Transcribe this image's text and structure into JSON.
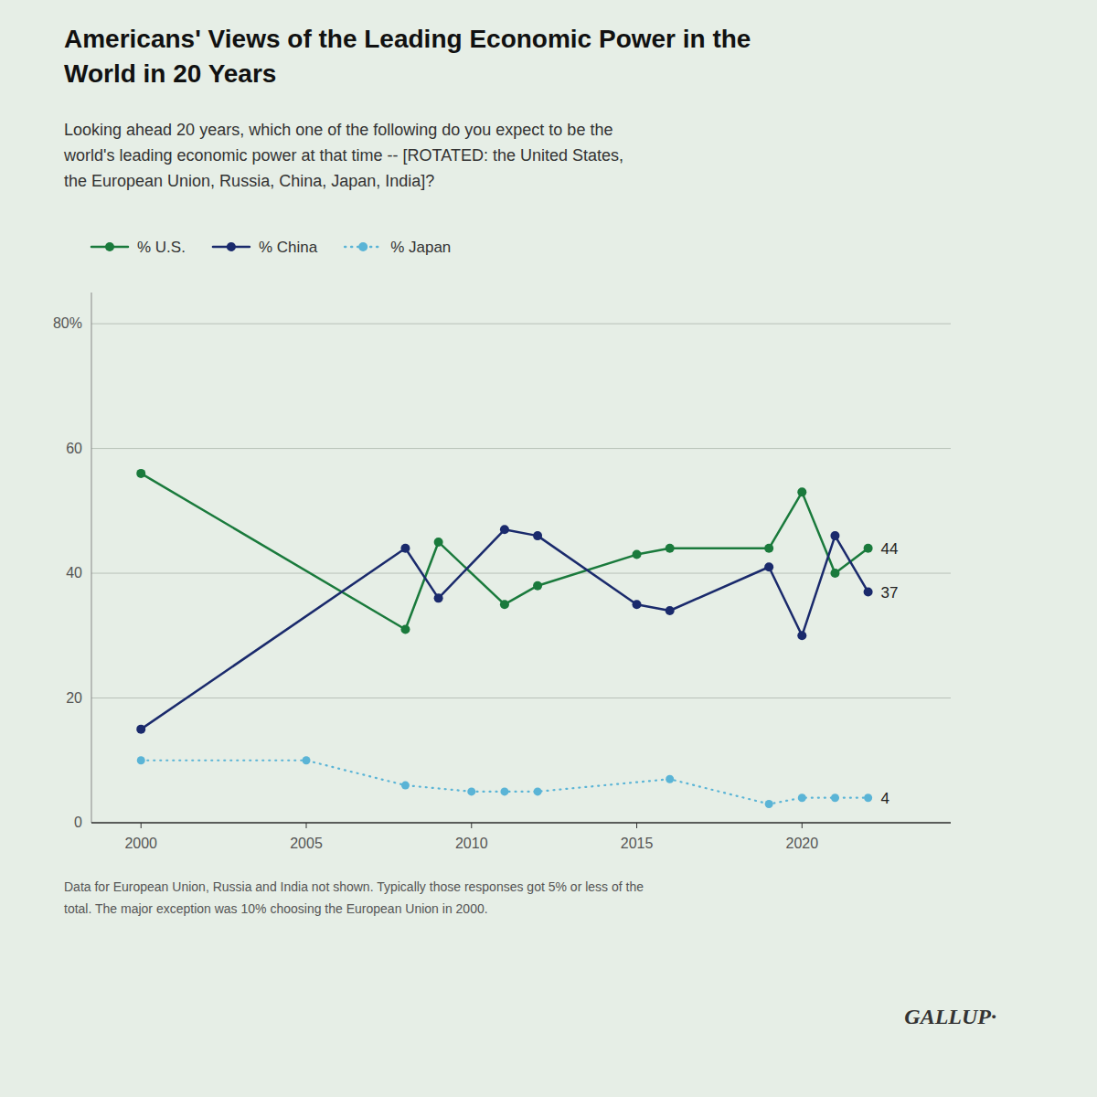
{
  "chart_data": {
    "type": "line",
    "title": [
      "Americans' Views of the Leading Economic Power in the",
      "World in 20 Years"
    ],
    "subtitle": [
      "Looking ahead 20 years, which one of the following do you expect to be the",
      "world's leading economic power at that time -- [ROTATED: the United States,",
      "the European Union, Russia, China, Japan, India]?"
    ],
    "footnote": [
      "Data for European Union, Russia and India not shown. Typically those responses got 5% or less of the",
      "total. The major exception was 10% choosing the European Union in 2000."
    ],
    "source": "GALLUP·",
    "series": [
      {
        "name": "% U.S.",
        "color": "#1a7a3c",
        "marker": "circle",
        "line_style": "solid",
        "x": [
          2000,
          2008,
          2009,
          2011,
          2012,
          2015,
          2016,
          2019,
          2020,
          2021,
          2022
        ],
        "values": [
          56,
          31,
          45,
          35,
          38,
          43,
          44,
          44,
          53,
          40,
          44
        ]
      },
      {
        "name": "% China",
        "color": "#1a2a6c",
        "marker": "circle",
        "line_style": "solid",
        "x": [
          2000,
          2008,
          2009,
          2011,
          2012,
          2015,
          2016,
          2019,
          2020,
          2021,
          2022
        ],
        "values": [
          15,
          44,
          36,
          47,
          46,
          35,
          34,
          41,
          30,
          46,
          37
        ]
      },
      {
        "name": "% Japan",
        "color": "#5ab4d6",
        "marker": "circle",
        "line_style": "dotted",
        "x": [
          2000,
          2005,
          2008,
          2010,
          2011,
          2012,
          2016,
          2019,
          2020,
          2021,
          2022
        ],
        "values": [
          10,
          10,
          6,
          5,
          5,
          5,
          7,
          3,
          4,
          4,
          4
        ]
      }
    ],
    "annotations": [
      {
        "text": "44",
        "x": 2022,
        "y": 44
      },
      {
        "text": "37",
        "x": 2022,
        "y": 37
      },
      {
        "text": "4",
        "x": 2022,
        "y": 4
      }
    ],
    "xlim": [
      1998.5,
      2024.5
    ],
    "xticks": [
      2000,
      2005,
      2010,
      2015,
      2020
    ],
    "ylim": [
      0,
      85
    ],
    "yticks": [
      0,
      20,
      40,
      60,
      {
        "value": 80,
        "label": "80%"
      }
    ],
    "grid": true,
    "legend": "top"
  }
}
